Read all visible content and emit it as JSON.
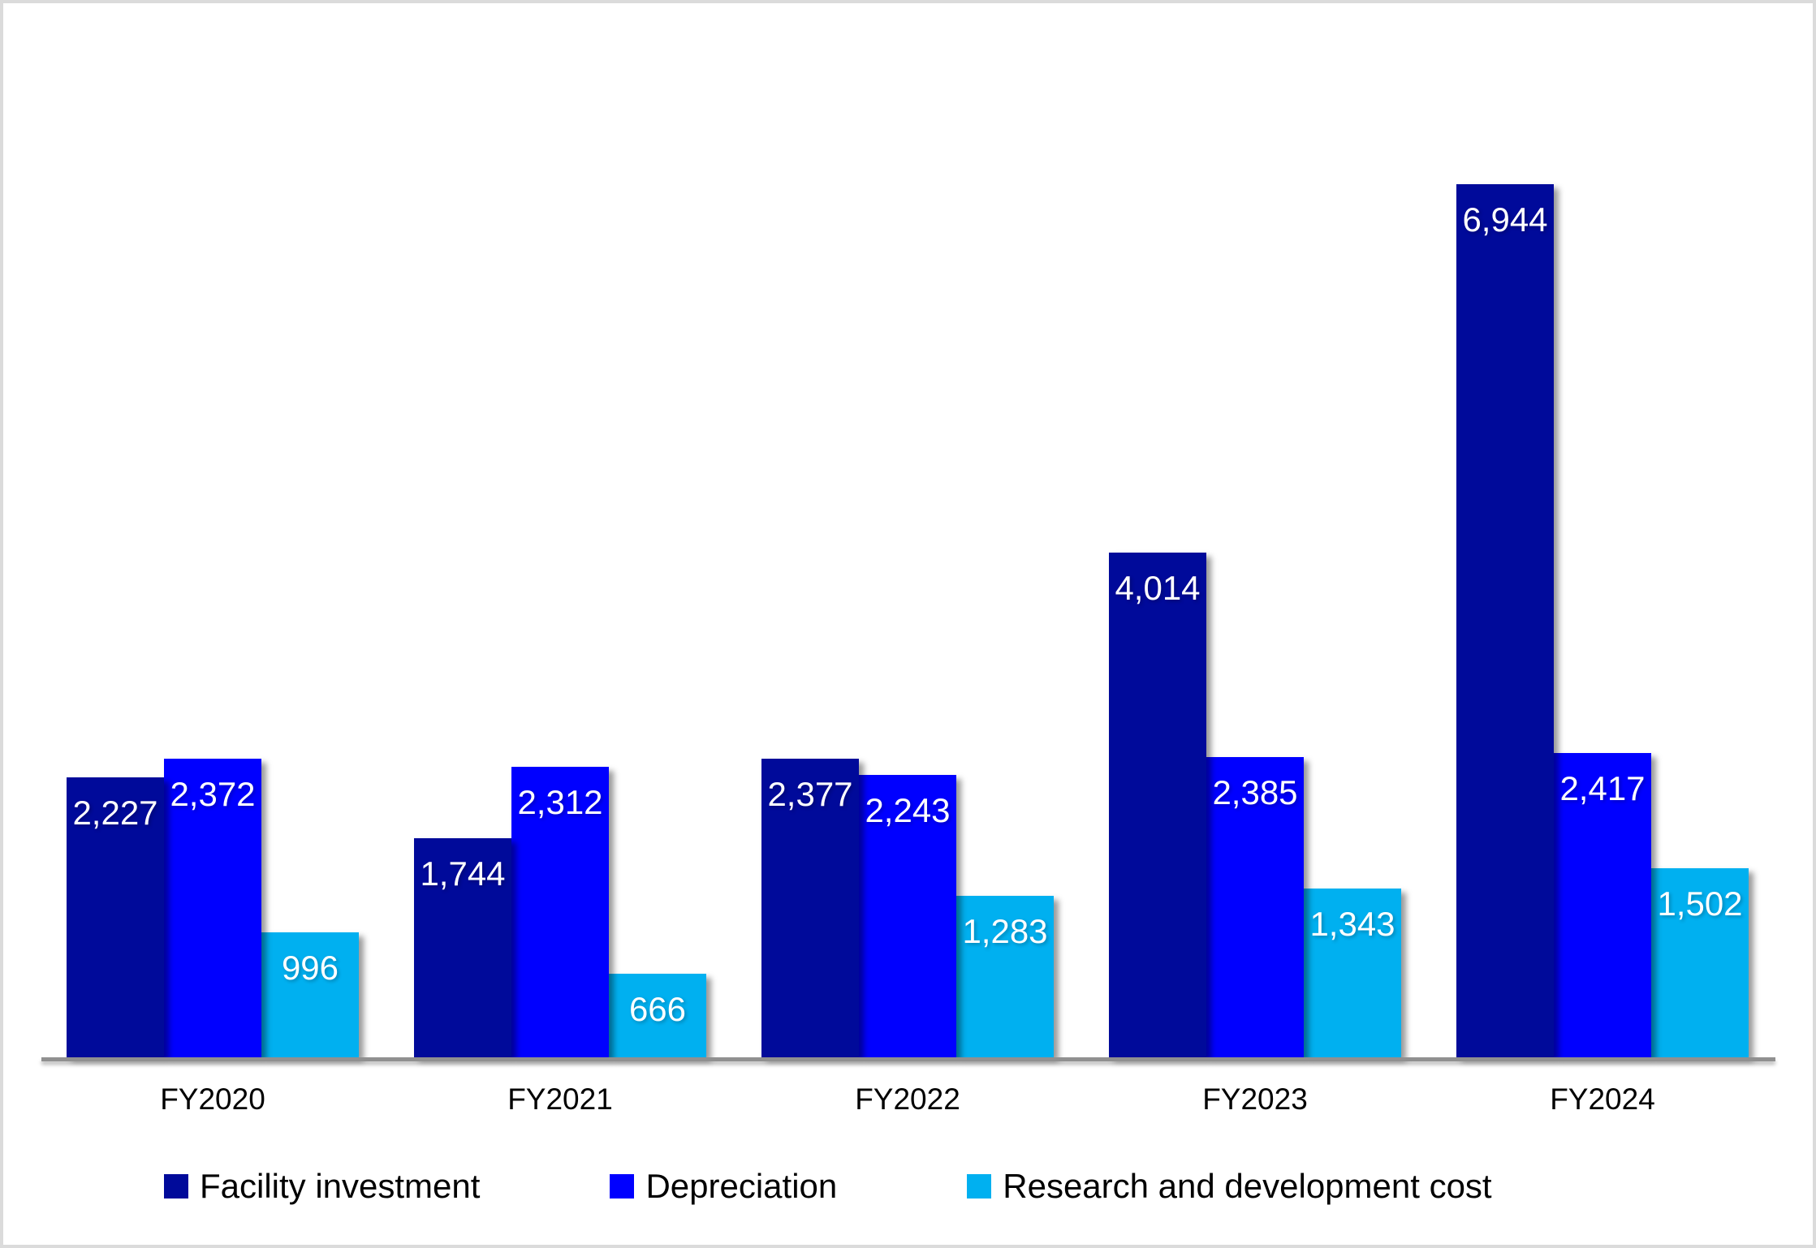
{
  "chart_data": {
    "type": "bar",
    "title": "",
    "xlabel": "",
    "ylabel": "",
    "categories": [
      "FY2020",
      "FY2021",
      "FY2022",
      "FY2023",
      "FY2024"
    ],
    "series": [
      {
        "name": "Facility investment",
        "color": "#000A9A",
        "values": [
          2227,
          1744,
          2377,
          4014,
          6944
        ],
        "labels": [
          "2,227",
          "1,744",
          "2,377",
          "4,014",
          "6,944"
        ]
      },
      {
        "name": "Depreciation",
        "color": "#0000FF",
        "values": [
          2372,
          2312,
          2243,
          2385,
          2417
        ],
        "labels": [
          "2,372",
          "2,312",
          "2,243",
          "2,385",
          "2,417"
        ]
      },
      {
        "name": "Research and development cost",
        "color": "#00B0F0",
        "values": [
          996,
          666,
          1283,
          1343,
          1502
        ],
        "labels": [
          "996",
          "666",
          "1,283",
          "1,343",
          "1,502"
        ]
      }
    ],
    "ylim": [
      0,
      7000
    ],
    "grid": false,
    "y_axis_visible": false,
    "legend_position": "bottom",
    "data_label_color": "#FFFFFF",
    "x_tick_color": "#000000",
    "axis_line_color": "#909090",
    "background_color": "#FFFFFF",
    "border_color": "#DBDBDB"
  }
}
